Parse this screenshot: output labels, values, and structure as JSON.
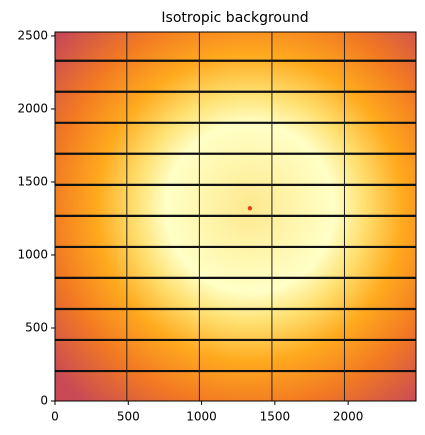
{
  "chart_data": {
    "type": "image",
    "title": "Isotropic background",
    "xlim": [
      0,
      2463
    ],
    "ylim": [
      0,
      2527
    ],
    "xticks": [
      0,
      500,
      1000,
      1500,
      2000
    ],
    "yticks": [
      0,
      500,
      1000,
      1500,
      2000,
      2500
    ],
    "module_gaps_x": [
      490,
      985,
      1480,
      1975
    ],
    "module_gaps_y": [
      205,
      418,
      630,
      843,
      1055,
      1268,
      1480,
      1693,
      1905,
      2118,
      2330
    ],
    "marker": {
      "x": 1330,
      "y": 1320,
      "color": "#e8401a"
    }
  }
}
